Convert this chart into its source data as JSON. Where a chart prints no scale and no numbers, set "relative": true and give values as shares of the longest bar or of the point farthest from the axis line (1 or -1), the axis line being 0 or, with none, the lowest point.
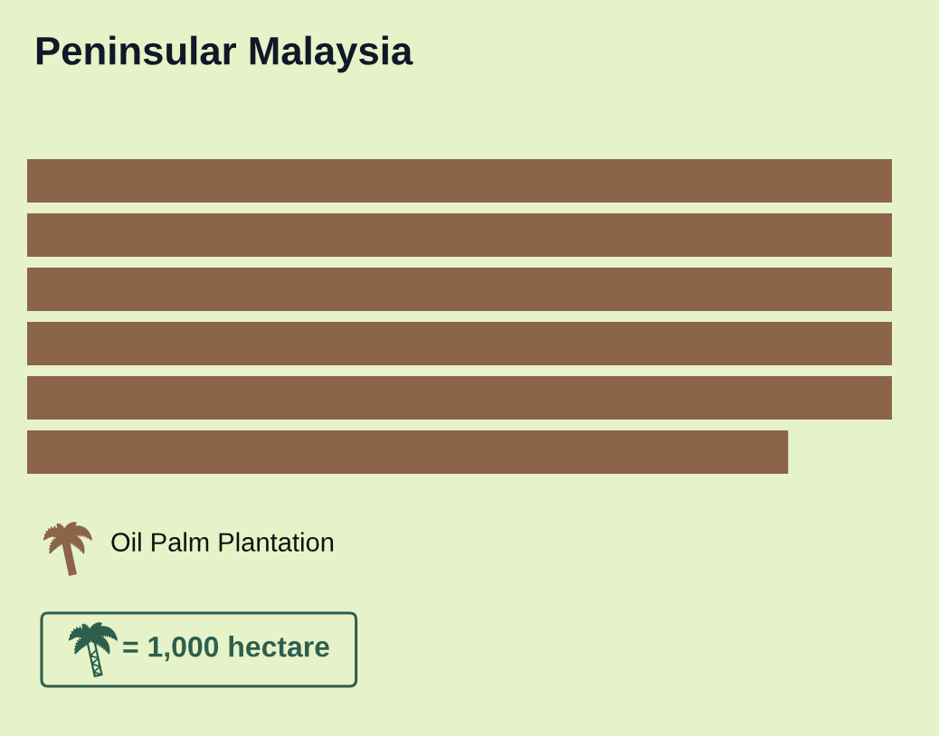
{
  "chart_data": {
    "type": "bar",
    "orientation": "horizontal",
    "relative": true,
    "title": "Peninsular Malaysia",
    "categories": [
      null,
      null,
      null,
      null,
      null,
      null
    ],
    "series": [
      {
        "name": "Oil Palm Plantation",
        "color": "#8c644a",
        "values": [
          1,
          1,
          1,
          1,
          1,
          0.88
        ]
      }
    ],
    "legend": "bottom left",
    "annotations": [
      "= 1,000 hectare"
    ]
  }
}
